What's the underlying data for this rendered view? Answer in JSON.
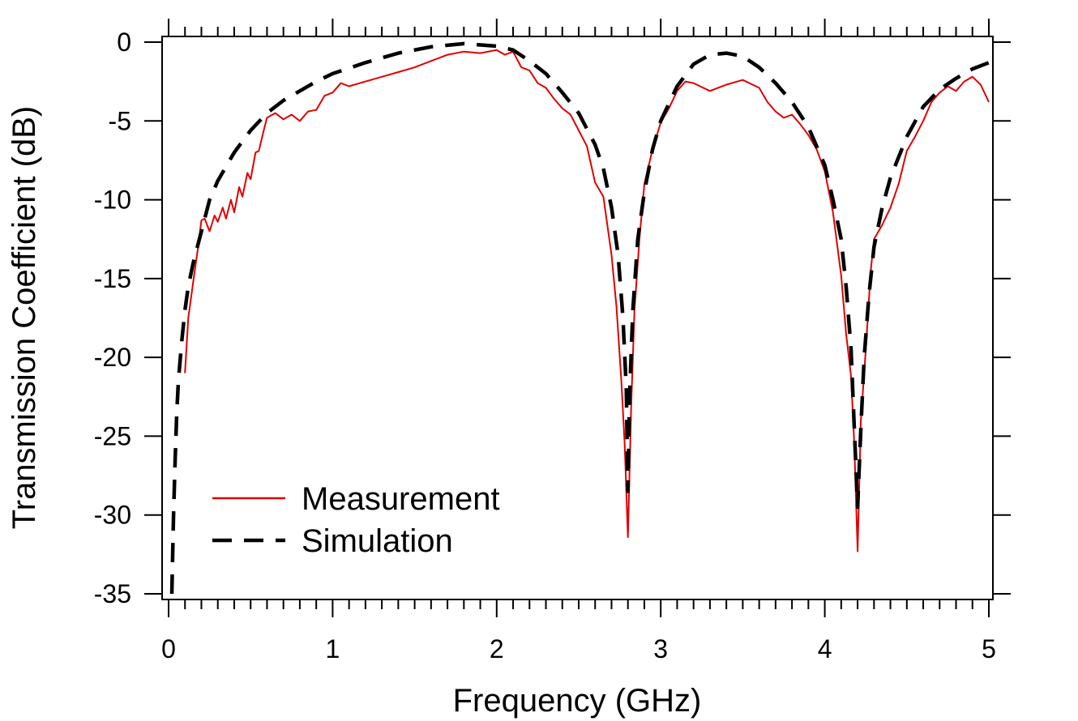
{
  "chart_data": {
    "type": "line",
    "title": "",
    "xlabel": "Frequency (GHz)",
    "ylabel": "Transmission Coefficient (dB)",
    "xlim": [
      0,
      5
    ],
    "ylim": [
      -35,
      0
    ],
    "xticks": [
      0,
      1,
      2,
      3,
      4,
      5
    ],
    "yticks": [
      0,
      -5,
      -10,
      -15,
      -20,
      -25,
      -30,
      -35
    ],
    "xtick_labels": [
      "0",
      "1",
      "2",
      "3",
      "4",
      "5"
    ],
    "ytick_labels": [
      "0",
      "-5",
      "-10",
      "-15",
      "-20",
      "-25",
      "-30",
      "-35"
    ],
    "grid": false,
    "legend_position": "bottom-left",
    "series": [
      {
        "name": "Measurement",
        "color": "#e00000",
        "style": "solid",
        "x": [
          0.1,
          0.12,
          0.15,
          0.18,
          0.2,
          0.22,
          0.25,
          0.28,
          0.3,
          0.33,
          0.35,
          0.38,
          0.4,
          0.43,
          0.45,
          0.48,
          0.5,
          0.53,
          0.55,
          0.58,
          0.6,
          0.65,
          0.7,
          0.75,
          0.8,
          0.85,
          0.9,
          0.95,
          1.0,
          1.05,
          1.1,
          1.2,
          1.3,
          1.4,
          1.5,
          1.6,
          1.7,
          1.8,
          1.9,
          2.0,
          2.05,
          2.1,
          2.15,
          2.2,
          2.25,
          2.3,
          2.35,
          2.4,
          2.45,
          2.5,
          2.55,
          2.6,
          2.65,
          2.7,
          2.73,
          2.76,
          2.78,
          2.8,
          2.82,
          2.84,
          2.87,
          2.9,
          2.95,
          3.0,
          3.05,
          3.1,
          3.15,
          3.2,
          3.3,
          3.4,
          3.5,
          3.6,
          3.65,
          3.7,
          3.75,
          3.8,
          3.85,
          3.9,
          3.95,
          4.0,
          4.05,
          4.1,
          4.13,
          4.16,
          4.18,
          4.2,
          4.22,
          4.25,
          4.28,
          4.3,
          4.35,
          4.4,
          4.45,
          4.5,
          4.55,
          4.6,
          4.65,
          4.7,
          4.75,
          4.8,
          4.85,
          4.9,
          4.95,
          5.0
        ],
        "values": [
          -21.0,
          -17.5,
          -15.2,
          -13.0,
          -11.3,
          -11.2,
          -12.0,
          -11.0,
          -11.4,
          -10.5,
          -11.2,
          -10.0,
          -10.8,
          -9.2,
          -9.8,
          -8.3,
          -8.7,
          -7.0,
          -6.9,
          -5.6,
          -4.8,
          -4.5,
          -4.9,
          -4.6,
          -5.0,
          -4.4,
          -4.3,
          -3.4,
          -3.2,
          -2.6,
          -2.8,
          -2.5,
          -2.2,
          -1.9,
          -1.6,
          -1.2,
          -0.8,
          -0.6,
          -0.7,
          -0.5,
          -0.8,
          -0.6,
          -1.6,
          -1.8,
          -2.6,
          -2.9,
          -3.6,
          -4.2,
          -4.6,
          -5.6,
          -6.6,
          -8.9,
          -9.8,
          -13.5,
          -16.8,
          -21.5,
          -25.5,
          -31.4,
          -23.0,
          -17.0,
          -12.5,
          -9.0,
          -6.8,
          -5.1,
          -4.2,
          -3.1,
          -2.5,
          -2.6,
          -3.1,
          -2.7,
          -2.4,
          -2.9,
          -3.8,
          -4.4,
          -4.8,
          -4.6,
          -5.2,
          -5.9,
          -6.8,
          -8.2,
          -10.8,
          -14.8,
          -18.5,
          -21.2,
          -25.5,
          -32.3,
          -24.0,
          -19.5,
          -14.5,
          -12.5,
          -11.6,
          -10.5,
          -9.0,
          -6.9,
          -6.0,
          -5.0,
          -3.8,
          -3.2,
          -2.8,
          -3.1,
          -2.5,
          -2.2,
          -2.7,
          -3.8
        ]
      },
      {
        "name": "Simulation",
        "color": "#000000",
        "style": "dashed",
        "x": [
          0.02,
          0.03,
          0.04,
          0.05,
          0.06,
          0.08,
          0.1,
          0.12,
          0.15,
          0.2,
          0.25,
          0.3,
          0.4,
          0.5,
          0.6,
          0.7,
          0.8,
          0.9,
          1.0,
          1.2,
          1.4,
          1.6,
          1.8,
          2.0,
          2.1,
          2.2,
          2.3,
          2.4,
          2.5,
          2.6,
          2.65,
          2.7,
          2.74,
          2.77,
          2.79,
          2.8,
          2.81,
          2.83,
          2.86,
          2.9,
          2.95,
          3.0,
          3.1,
          3.2,
          3.3,
          3.4,
          3.5,
          3.6,
          3.7,
          3.8,
          3.9,
          4.0,
          4.05,
          4.1,
          4.13,
          4.16,
          4.18,
          4.2,
          4.22,
          4.24,
          4.27,
          4.3,
          4.35,
          4.4,
          4.5,
          4.6,
          4.7,
          4.8,
          4.9,
          5.0
        ],
        "values": [
          -35.0,
          -30.0,
          -26.5,
          -23.5,
          -21.5,
          -19.0,
          -17.0,
          -15.5,
          -14.0,
          -12.0,
          -10.0,
          -8.8,
          -7.0,
          -5.6,
          -4.5,
          -3.7,
          -3.1,
          -2.5,
          -2.0,
          -1.3,
          -0.7,
          -0.3,
          -0.1,
          -0.25,
          -0.5,
          -1.2,
          -2.0,
          -3.2,
          -4.5,
          -6.5,
          -8.0,
          -10.5,
          -13.5,
          -17.5,
          -22.0,
          -28.5,
          -22.5,
          -17.0,
          -12.5,
          -9.5,
          -6.8,
          -5.0,
          -2.8,
          -1.4,
          -0.8,
          -0.7,
          -0.9,
          -1.6,
          -2.6,
          -3.8,
          -5.4,
          -7.8,
          -10.0,
          -12.5,
          -15.5,
          -19.5,
          -24.5,
          -29.5,
          -24.5,
          -20.0,
          -16.0,
          -13.0,
          -10.5,
          -8.6,
          -6.0,
          -4.1,
          -3.0,
          -2.3,
          -1.7,
          -1.3
        ]
      }
    ]
  }
}
